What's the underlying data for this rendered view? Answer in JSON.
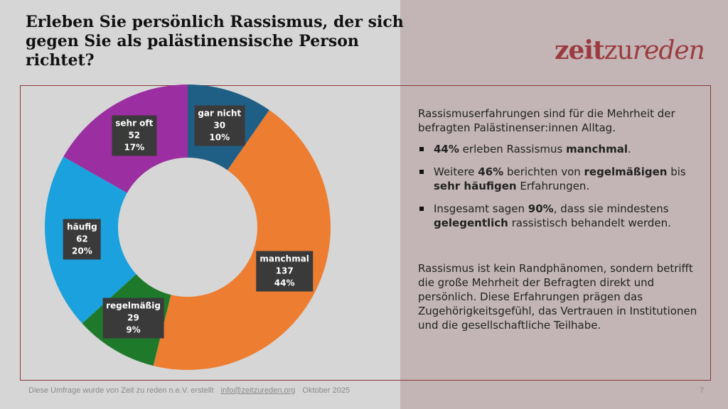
{
  "title": "Erleben Sie persönlich Rassismus, der sich gegen Sie als palästinensische Person richtet?",
  "logo": {
    "part1": "zeit",
    "part2": "zu",
    "part3": "reden",
    "color": "#9b3b3f"
  },
  "chart_data": {
    "type": "pie",
    "donut": true,
    "start": "top",
    "direction": "clockwise",
    "slices": [
      {
        "label": "gar nicht",
        "count": 30,
        "percent": "10%",
        "value": 30,
        "color": "#1f5f86"
      },
      {
        "label": "manchmal",
        "count": 137,
        "percent": "44%",
        "value": 137,
        "color": "#ed7d31"
      },
      {
        "label": "regelmäßig",
        "count": 29,
        "percent": "9%",
        "value": 29,
        "color": "#1e7a2a"
      },
      {
        "label": "häufig",
        "count": 62,
        "percent": "20%",
        "value": 62,
        "color": "#1ba1dd"
      },
      {
        "label": "sehr oft",
        "count": 52,
        "percent": "17%",
        "value": 52,
        "color": "#9b2ea0"
      }
    ]
  },
  "text": {
    "intro": "Rassismuserfahrungen sind für die Mehrheit der befragten Palästinenser:innen Alltag.",
    "b1": {
      "s1": "44%",
      "t1": " erleben Rassismus ",
      "s2": "manchmal",
      "t2": "."
    },
    "b2": {
      "t1": "Weitere ",
      "s1": "46%",
      "t2": " berichten von ",
      "s2": "regelmäßigen",
      "t3": " bis ",
      "s3": "sehr häufigen",
      "t4": " Erfahrungen."
    },
    "b3": {
      "t1": "Insgesamt sagen ",
      "s1": "90%",
      "t2": ", dass sie mindestens ",
      "s2": "gelegentlich",
      "t3": " rassistisch behandelt werden."
    },
    "para": "Rassismus ist kein Randphänomen, sondern betrifft die große Mehrheit der Befragten direkt und persönlich. Diese Erfahrungen prägen das Zugehörigkeitsgefühl, das Vertrauen in Institutionen und die gesellschaftliche Teilhabe."
  },
  "footer": {
    "credit": "Diese Umfrage wurde von Zeit zu reden n.e.V. erstellt",
    "email": "info@zeitzureden.org",
    "date": "Oktober 2025",
    "page": "7"
  }
}
